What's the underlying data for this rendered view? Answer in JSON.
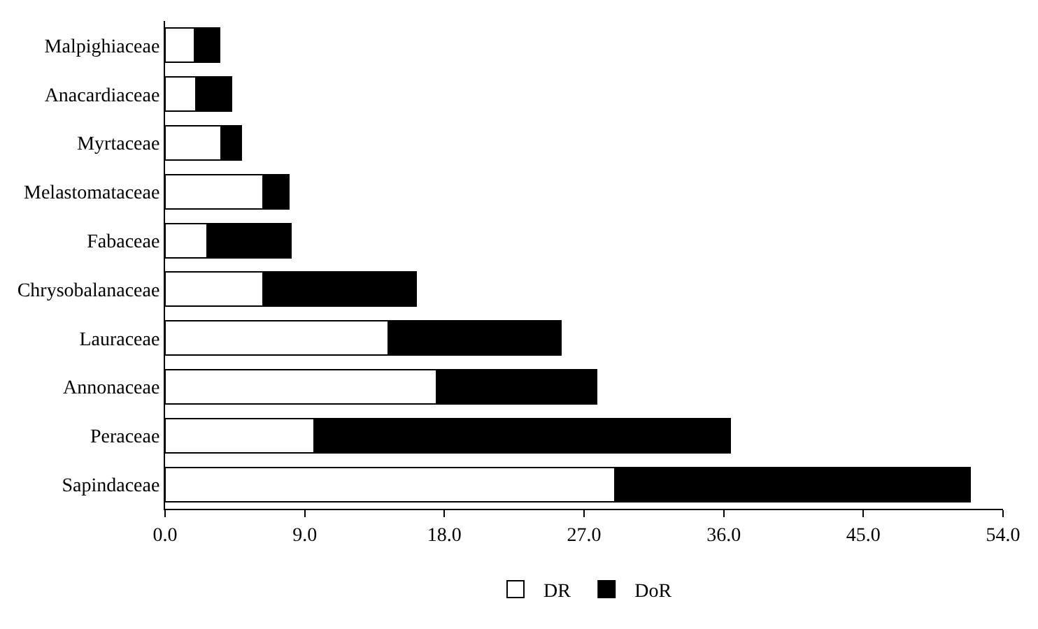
{
  "chart_data": {
    "type": "bar",
    "orientation": "horizontal",
    "stacked": true,
    "categories": [
      "Malpighiaceae",
      "Anacardiaceae",
      "Myrtaceae",
      "Melastomataceae",
      "Fabaceae",
      "Chrysobalanaceae",
      "Lauraceae",
      "Annonaceae",
      "Peraceae",
      "Sapindaceae"
    ],
    "series": [
      {
        "name": "DR",
        "color": "#ffffff",
        "values": [
          1.9,
          2.0,
          3.6,
          6.3,
          2.7,
          6.3,
          14.4,
          17.5,
          9.6,
          29.0
        ]
      },
      {
        "name": "DoR",
        "color": "#000000",
        "values": [
          1.6,
          2.3,
          1.3,
          1.7,
          5.4,
          9.9,
          11.1,
          10.3,
          26.8,
          22.9
        ]
      }
    ],
    "xlim": [
      0,
      54
    ],
    "xticks": [
      {
        "value": 0,
        "label": "0.0"
      },
      {
        "value": 9,
        "label": "9.0"
      },
      {
        "value": 18,
        "label": "18.0"
      },
      {
        "value": 27,
        "label": "27.0"
      },
      {
        "value": 36,
        "label": "36.0"
      },
      {
        "value": 45,
        "label": "45.0"
      },
      {
        "value": 54,
        "label": "54.0"
      }
    ],
    "legend": "bottom"
  }
}
